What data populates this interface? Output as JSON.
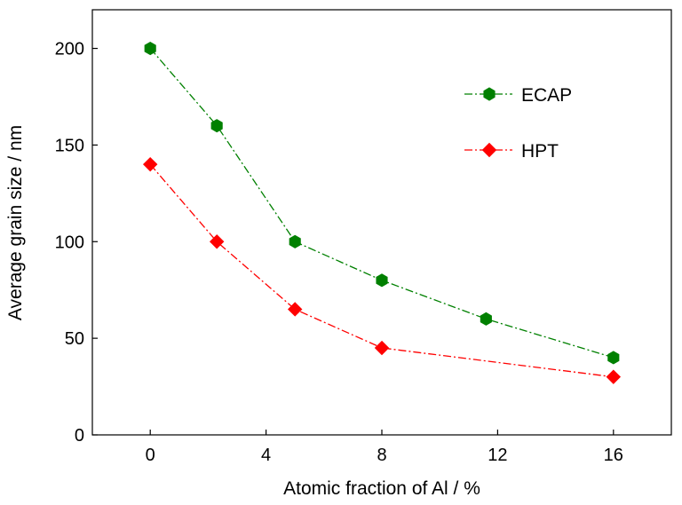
{
  "chart_data": {
    "type": "line",
    "title": "",
    "xlabel": "Atomic fraction of Al / %",
    "ylabel": "Average grain size / nm",
    "xlim": [
      -2,
      18
    ],
    "ylim": [
      0,
      220
    ],
    "xticks": [
      0,
      4,
      8,
      12,
      16
    ],
    "xtick_labels": [
      "0",
      "4",
      "8",
      "12",
      "16"
    ],
    "yticks": [
      0,
      50,
      100,
      150,
      200
    ],
    "ytick_labels": [
      "0",
      "50",
      "100",
      "150",
      "200"
    ],
    "grid": false,
    "legend_position": "top-right",
    "series": [
      {
        "name": "ECAP",
        "color": "#008000",
        "marker": "hexagon",
        "line_style": "dash-dot",
        "x": [
          0,
          2.3,
          5,
          8,
          11.6,
          16
        ],
        "y": [
          200,
          160,
          100,
          80,
          60,
          40
        ]
      },
      {
        "name": "HPT",
        "color": "#ff0000",
        "marker": "diamond",
        "line_style": "dash-dot",
        "x": [
          0,
          2.3,
          5,
          8,
          16
        ],
        "y": [
          140,
          100,
          65,
          45,
          30
        ]
      }
    ]
  }
}
